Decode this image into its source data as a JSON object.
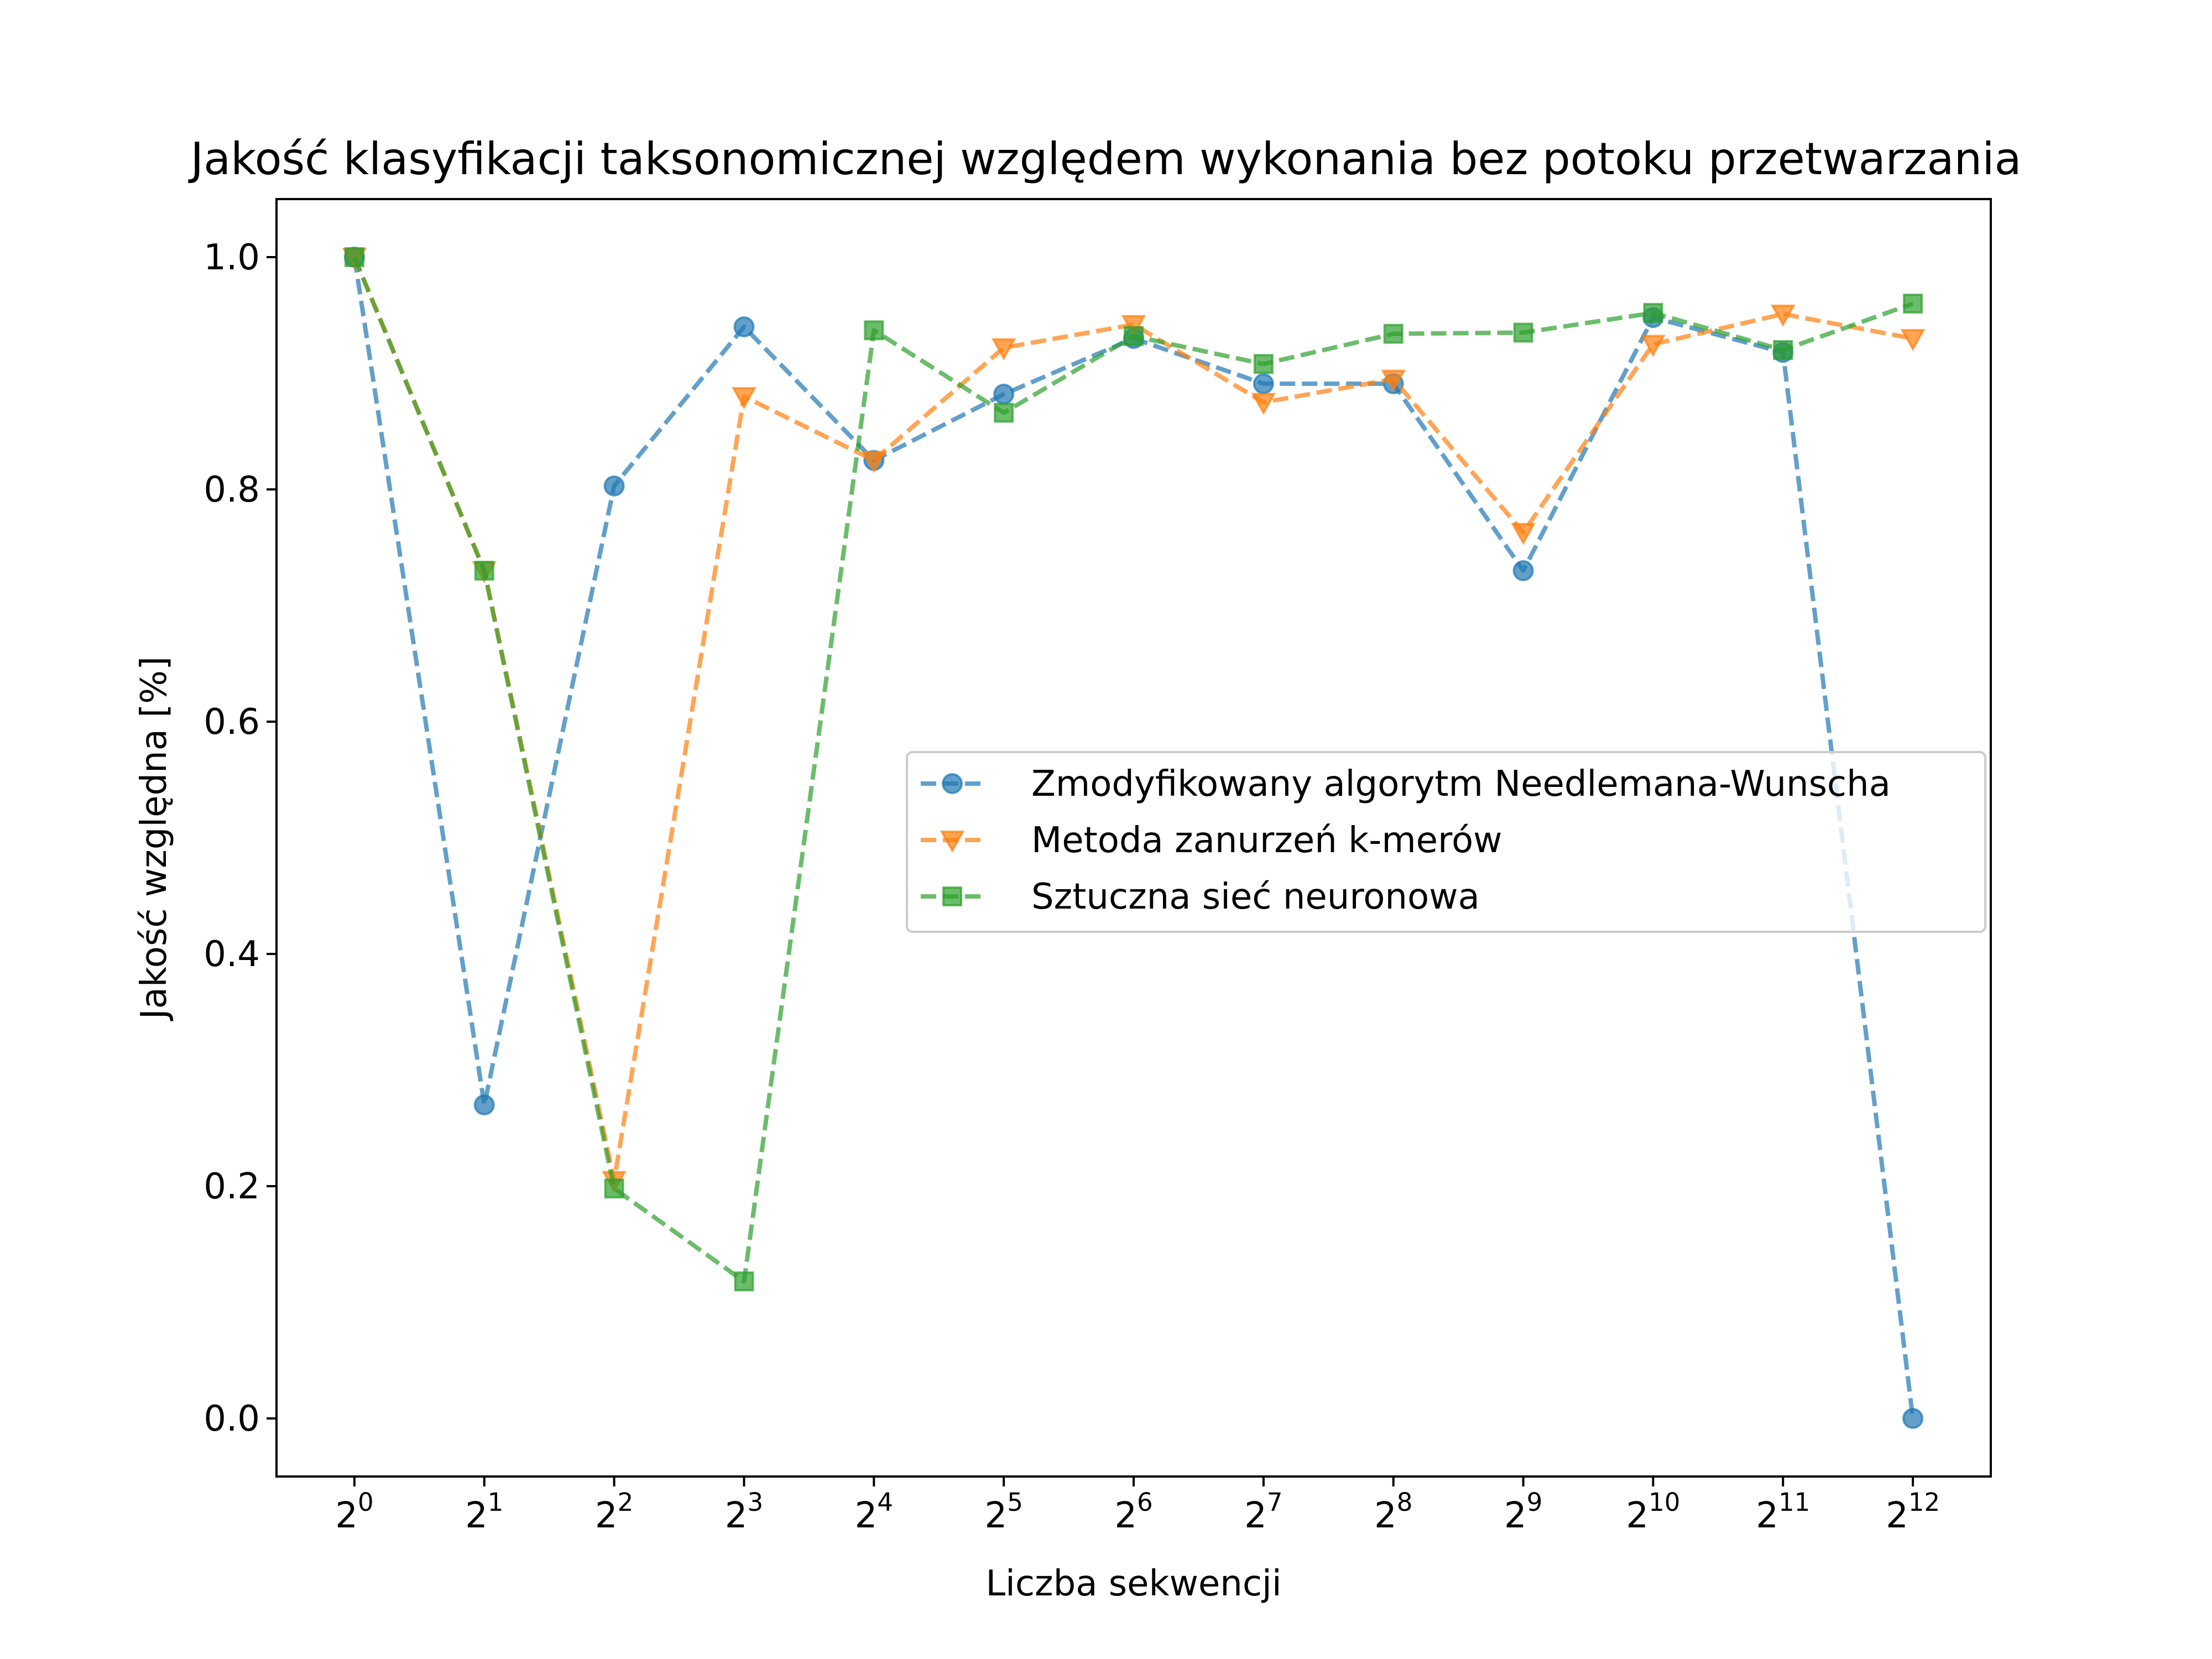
{
  "chart_data": {
    "type": "line",
    "title": "Jakość klasyfikacji taksonomicznej względem wykonania bez potoku przetwarzania",
    "xlabel": "Liczba sekwencji",
    "ylabel": "Jakość względna [%]",
    "x": [
      0,
      1,
      2,
      3,
      4,
      5,
      6,
      7,
      8,
      9,
      10,
      11,
      12
    ],
    "x_tick_labels": [
      {
        "base": "2",
        "exp": "0"
      },
      {
        "base": "2",
        "exp": "1"
      },
      {
        "base": "2",
        "exp": "2"
      },
      {
        "base": "2",
        "exp": "3"
      },
      {
        "base": "2",
        "exp": "4"
      },
      {
        "base": "2",
        "exp": "5"
      },
      {
        "base": "2",
        "exp": "6"
      },
      {
        "base": "2",
        "exp": "7"
      },
      {
        "base": "2",
        "exp": "8"
      },
      {
        "base": "2",
        "exp": "9"
      },
      {
        "base": "2",
        "exp": "10"
      },
      {
        "base": "2",
        "exp": "11"
      },
      {
        "base": "2",
        "exp": "12"
      }
    ],
    "y_ticks": [
      0.0,
      0.2,
      0.4,
      0.6,
      0.8,
      1.0
    ],
    "y_tick_labels": [
      "0.0",
      "0.2",
      "0.4",
      "0.6",
      "0.8",
      "1.0"
    ],
    "xlim": [
      -0.6,
      12.6
    ],
    "ylim": [
      -0.05,
      1.05
    ],
    "grid": false,
    "legend_position": "center-right",
    "series": [
      {
        "name": "Zmodyfikowany algorytm Needlemana-Wunscha",
        "color": "#1f77b4",
        "marker": "circle",
        "values": [
          1.0,
          0.27,
          0.803,
          0.94,
          0.825,
          0.882,
          0.93,
          0.891,
          0.891,
          0.73,
          0.948,
          0.918,
          0.0
        ]
      },
      {
        "name": "Metoda zanurzeń k-merów",
        "color": "#ff7f0e",
        "marker": "triangle-down",
        "values": [
          1.0,
          0.73,
          0.205,
          0.88,
          0.825,
          0.922,
          0.942,
          0.875,
          0.895,
          0.763,
          0.925,
          0.951,
          0.93
        ]
      },
      {
        "name": "Sztuczna sieć neuronowa",
        "color": "#2ca02c",
        "marker": "square",
        "values": [
          1.0,
          0.73,
          0.198,
          0.118,
          0.937,
          0.866,
          0.932,
          0.908,
          0.934,
          0.935,
          0.952,
          0.92,
          0.96
        ]
      }
    ]
  }
}
